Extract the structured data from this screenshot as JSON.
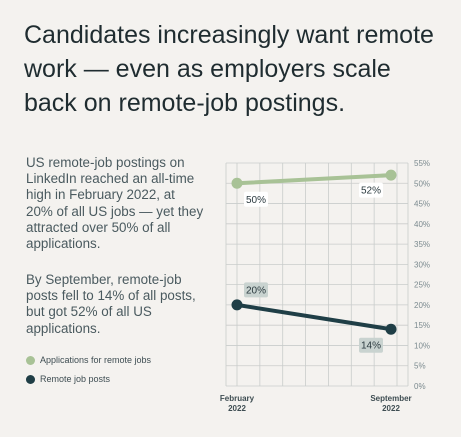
{
  "headline": "Candidates increasingly want remote work — even as employers scale back on remote-job postings.",
  "paragraphs": [
    "US remote-job postings on LinkedIn reached an all-time high in February 2022, at 20% of all US jobs — yet they attracted over 50% of all applications.",
    "By September, remote-job posts fell to 14% of all posts, but got 52% of all US applications."
  ],
  "colors": {
    "applications": "#a8c296",
    "posts": "#1f3e46",
    "label_bg_applications": "#ffffff",
    "label_bg_posts": "#c9d3d0",
    "grid": "#c9cccb"
  },
  "chart_data": {
    "type": "line",
    "x": [
      "February 2022",
      "September 2022"
    ],
    "x_tick_lines": [
      [
        "February",
        "2022"
      ],
      [
        "September",
        "2022"
      ]
    ],
    "series": [
      {
        "name": "Applications for remote jobs",
        "values": [
          50,
          52
        ],
        "labels": [
          "50%",
          "52%"
        ]
      },
      {
        "name": "Remote job posts",
        "values": [
          20,
          14
        ],
        "labels": [
          "20%",
          "14%"
        ]
      }
    ],
    "ylim": [
      0,
      55
    ],
    "y_ticks": [
      "0%",
      "5%",
      "10%",
      "15%",
      "20%",
      "25%",
      "30%",
      "35%",
      "40%",
      "45%",
      "50%",
      "55%"
    ],
    "y_axis_side": "right",
    "grid": true,
    "legend_position": "bottom-left"
  }
}
